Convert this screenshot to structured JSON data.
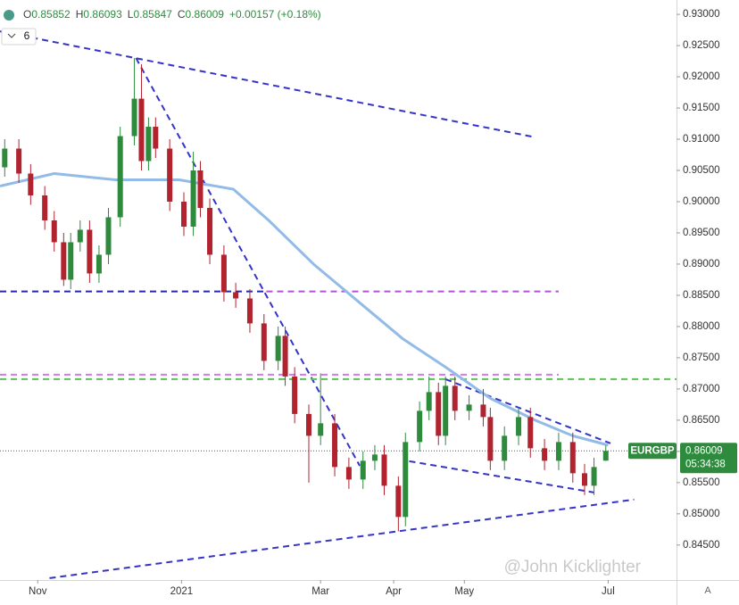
{
  "chart_data": {
    "type": "candlestick",
    "symbol": "EURGBP",
    "ohlc_header": [
      {
        "label": "O",
        "value": "0.85852"
      },
      {
        "label": "H",
        "value": "0.86093"
      },
      {
        "label": "L",
        "value": "0.85847"
      },
      {
        "label": "C",
        "value": "0.86009"
      },
      {
        "label": "",
        "value": "+0.00157 (+0.18%)"
      }
    ],
    "indicator_count": "6",
    "last_price": 0.86009,
    "countdown": "05:34:38",
    "watermark": "@John Kicklighter",
    "auto_label": "A",
    "up_color": "#2e8b3e",
    "down_color": "#b0232f",
    "xlim": [
      -16,
      271
    ],
    "ylim": [
      0.8394,
      0.9323
    ],
    "xticks": [
      {
        "value": 0,
        "label": "Nov"
      },
      {
        "value": 61,
        "label": "2021"
      },
      {
        "value": 120,
        "label": "Mar"
      },
      {
        "value": 151,
        "label": "Apr"
      },
      {
        "value": 181,
        "label": "May"
      },
      {
        "value": 242,
        "label": "Jul"
      }
    ],
    "yticks": [
      {
        "value": 0.845,
        "label": "0.84500"
      },
      {
        "value": 0.85,
        "label": "0.85000"
      },
      {
        "value": 0.855,
        "label": "0.85500"
      },
      {
        "value": 0.86,
        "label": "0.86000"
      },
      {
        "value": 0.865,
        "label": "0.86500"
      },
      {
        "value": 0.87,
        "label": "0.87000"
      },
      {
        "value": 0.875,
        "label": "0.87500"
      },
      {
        "value": 0.88,
        "label": "0.88000"
      },
      {
        "value": 0.885,
        "label": "0.88500"
      },
      {
        "value": 0.89,
        "label": "0.89000"
      },
      {
        "value": 0.895,
        "label": "0.89500"
      },
      {
        "value": 0.9,
        "label": "0.90000"
      },
      {
        "value": 0.905,
        "label": "0.90500"
      },
      {
        "value": 0.91,
        "label": "0.91000"
      },
      {
        "value": 0.915,
        "label": "0.91500"
      },
      {
        "value": 0.92,
        "label": "0.92000"
      },
      {
        "value": 0.925,
        "label": "0.92500"
      },
      {
        "value": 0.93,
        "label": "0.93000"
      }
    ],
    "candles": {
      "x": [
        -14,
        -8,
        -3,
        3,
        7,
        11,
        14,
        18,
        22,
        26,
        30,
        35,
        41,
        44,
        47,
        50,
        56,
        62,
        66,
        69,
        73,
        79,
        84,
        90,
        96,
        102,
        105,
        109,
        115,
        120,
        126,
        132,
        138,
        143,
        147,
        153,
        156,
        162,
        166,
        170,
        173,
        177,
        183,
        189,
        192,
        198,
        204,
        209,
        215,
        221,
        227,
        232,
        236,
        241
      ],
      "open": [
        0.9055,
        0.9085,
        0.9045,
        0.901,
        0.897,
        0.8935,
        0.8875,
        0.8935,
        0.8955,
        0.8885,
        0.8915,
        0.8975,
        0.9105,
        0.9165,
        0.9065,
        0.912,
        0.9085,
        0.9,
        0.896,
        0.905,
        0.899,
        0.8915,
        0.8855,
        0.8845,
        0.8805,
        0.8745,
        0.8785,
        0.872,
        0.866,
        0.8625,
        0.8645,
        0.8575,
        0.8555,
        0.8585,
        0.8595,
        0.8545,
        0.8495,
        0.8615,
        0.8665,
        0.8695,
        0.8625,
        0.8705,
        0.8665,
        0.8675,
        0.8655,
        0.8585,
        0.8625,
        0.8655,
        0.8605,
        0.8585,
        0.8615,
        0.8565,
        0.8545,
        0.85852
      ],
      "high": [
        0.91,
        0.91,
        0.906,
        0.9025,
        0.8985,
        0.895,
        0.895,
        0.897,
        0.897,
        0.893,
        0.899,
        0.912,
        0.923,
        0.922,
        0.9135,
        0.9135,
        0.91,
        0.9015,
        0.908,
        0.9065,
        0.9005,
        0.893,
        0.887,
        0.886,
        0.882,
        0.88,
        0.88,
        0.8735,
        0.8675,
        0.8725,
        0.866,
        0.859,
        0.86,
        0.861,
        0.861,
        0.856,
        0.863,
        0.868,
        0.872,
        0.871,
        0.872,
        0.872,
        0.869,
        0.87,
        0.867,
        0.864,
        0.867,
        0.867,
        0.862,
        0.863,
        0.863,
        0.858,
        0.859,
        0.86093
      ],
      "low": [
        0.904,
        0.903,
        0.8995,
        0.8955,
        0.892,
        0.8865,
        0.886,
        0.892,
        0.887,
        0.887,
        0.89,
        0.896,
        0.909,
        0.905,
        0.905,
        0.907,
        0.8985,
        0.8945,
        0.8945,
        0.8975,
        0.89,
        0.884,
        0.883,
        0.879,
        0.873,
        0.873,
        0.8705,
        0.8645,
        0.855,
        0.861,
        0.856,
        0.854,
        0.854,
        0.857,
        0.853,
        0.8472,
        0.848,
        0.86,
        0.865,
        0.861,
        0.861,
        0.865,
        0.865,
        0.864,
        0.857,
        0.857,
        0.861,
        0.859,
        0.857,
        0.857,
        0.855,
        0.853,
        0.853,
        0.85847
      ],
      "close": [
        0.9085,
        0.9045,
        0.901,
        0.897,
        0.8935,
        0.8875,
        0.8935,
        0.8955,
        0.8885,
        0.8915,
        0.8975,
        0.9105,
        0.9165,
        0.9065,
        0.912,
        0.9085,
        0.9,
        0.896,
        0.905,
        0.899,
        0.8915,
        0.8855,
        0.8845,
        0.8805,
        0.8745,
        0.8785,
        0.872,
        0.866,
        0.8625,
        0.8645,
        0.8575,
        0.8555,
        0.8585,
        0.8595,
        0.8545,
        0.8495,
        0.8615,
        0.8665,
        0.8695,
        0.8625,
        0.8705,
        0.8665,
        0.8675,
        0.8655,
        0.8585,
        0.8625,
        0.8655,
        0.8605,
        0.8585,
        0.8615,
        0.8565,
        0.8545,
        0.8575,
        0.86009
      ]
    },
    "moving_average": {
      "color": "#92bbe8",
      "x": [
        -16,
        7,
        33,
        60,
        83,
        98,
        117,
        136,
        155,
        173,
        192,
        211,
        227,
        242
      ],
      "values": [
        0.9025,
        0.9045,
        0.9035,
        0.9035,
        0.902,
        0.897,
        0.89,
        0.884,
        0.878,
        0.8735,
        0.8685,
        0.865,
        0.8625,
        0.861
      ]
    },
    "trend_lines": [
      {
        "color": "#3434c8",
        "x": [
          -16,
          209.5
        ],
        "y": [
          0.92729,
          0.91043
        ]
      },
      {
        "color": "#3434c8",
        "x": [
          41.7,
          136.6
        ],
        "y": [
          0.923,
          0.8577
        ]
      },
      {
        "color": "#2a2aa8",
        "x": [
          -16,
          97
        ],
        "y": [
          0.88561,
          0.88561
        ]
      },
      {
        "color": "#b452d8",
        "x": [
          97,
          221
        ],
        "y": [
          0.88561,
          0.88561
        ]
      },
      {
        "color": "#d07ae8",
        "x": [
          -16,
          221
        ],
        "y": [
          0.87229,
          0.87229
        ]
      },
      {
        "color": "#5cbf5c",
        "x": [
          -16,
          271
        ],
        "y": [
          0.87157,
          0.87157
        ]
      },
      {
        "color": "#3434c8",
        "x": [
          5,
          253
        ],
        "y": [
          0.8397,
          0.85229
        ]
      },
      {
        "color": "#3434c8",
        "x": [
          173,
          243
        ],
        "y": [
          0.87157,
          0.86129
        ]
      },
      {
        "color": "#3434c8",
        "x": [
          157.6,
          236
        ],
        "y": [
          0.85843,
          0.85343
        ]
      }
    ]
  }
}
